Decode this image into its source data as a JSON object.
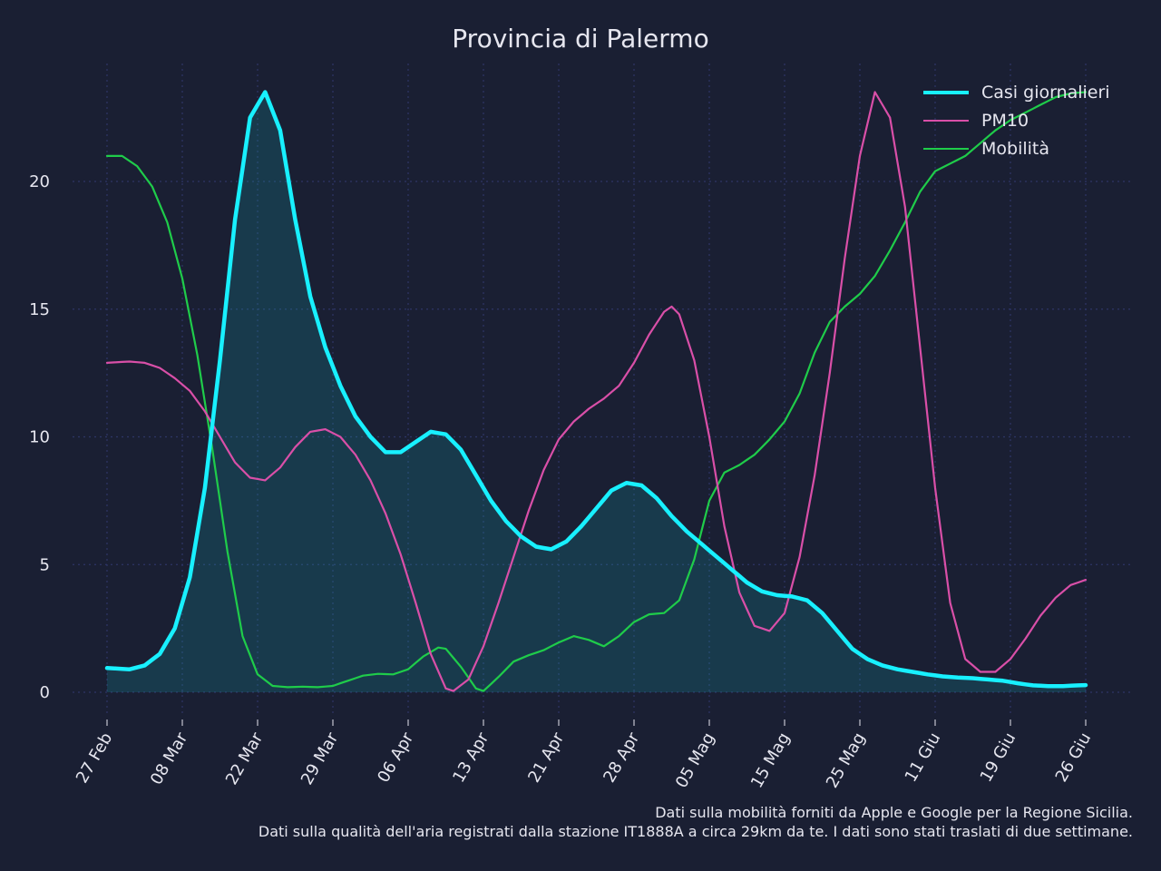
{
  "chart_data": {
    "type": "line",
    "title": "Provincia di Palermo",
    "xlabel": "",
    "ylabel": "",
    "ylim": [
      -1,
      25
    ],
    "yticks": [
      0,
      5,
      10,
      15,
      20
    ],
    "grid": true,
    "legend_position": "top-right",
    "xticks": [
      "27 Feb",
      "08 Mar",
      "22 Mar",
      "29 Mar",
      "06 Apr",
      "13 Apr",
      "21 Apr",
      "28 Apr",
      "05 Mag",
      "15 Mag",
      "25 Mag",
      "11 Giu",
      "19 Giu",
      "26 Giu"
    ],
    "x_tick_indices": [
      0,
      10,
      20,
      30,
      40,
      50,
      60,
      70,
      80,
      90,
      100,
      110,
      120,
      130
    ],
    "x_points": 131,
    "series": [
      {
        "name": "Casi giornalieri",
        "color": "#18f0ff",
        "fill": true,
        "keypoints": [
          [
            0,
            0.95
          ],
          [
            3,
            0.9
          ],
          [
            5,
            1.05
          ],
          [
            7,
            1.5
          ],
          [
            9,
            2.5
          ],
          [
            11,
            4.5
          ],
          [
            13,
            8.0
          ],
          [
            15,
            13.0
          ],
          [
            17,
            18.5
          ],
          [
            19,
            22.5
          ],
          [
            21,
            23.5
          ],
          [
            23,
            22.0
          ],
          [
            25,
            18.5
          ],
          [
            27,
            15.5
          ],
          [
            29,
            13.5
          ],
          [
            31,
            12.0
          ],
          [
            33,
            10.8
          ],
          [
            35,
            10.0
          ],
          [
            37,
            9.4
          ],
          [
            39,
            9.4
          ],
          [
            41,
            9.8
          ],
          [
            43,
            10.2
          ],
          [
            45,
            10.1
          ],
          [
            47,
            9.5
          ],
          [
            49,
            8.5
          ],
          [
            51,
            7.5
          ],
          [
            53,
            6.7
          ],
          [
            55,
            6.1
          ],
          [
            57,
            5.7
          ],
          [
            59,
            5.6
          ],
          [
            61,
            5.9
          ],
          [
            63,
            6.5
          ],
          [
            65,
            7.2
          ],
          [
            67,
            7.9
          ],
          [
            69,
            8.2
          ],
          [
            71,
            8.1
          ],
          [
            73,
            7.6
          ],
          [
            75,
            6.9
          ],
          [
            77,
            6.3
          ],
          [
            79,
            5.8
          ],
          [
            81,
            5.3
          ],
          [
            83,
            4.8
          ],
          [
            85,
            4.3
          ],
          [
            87,
            3.95
          ],
          [
            89,
            3.8
          ],
          [
            91,
            3.75
          ],
          [
            93,
            3.6
          ],
          [
            95,
            3.1
          ],
          [
            97,
            2.4
          ],
          [
            99,
            1.7
          ],
          [
            101,
            1.3
          ],
          [
            103,
            1.05
          ],
          [
            105,
            0.9
          ],
          [
            107,
            0.8
          ],
          [
            109,
            0.7
          ],
          [
            111,
            0.62
          ],
          [
            113,
            0.58
          ],
          [
            115,
            0.55
          ],
          [
            117,
            0.5
          ],
          [
            119,
            0.45
          ],
          [
            121,
            0.35
          ],
          [
            123,
            0.27
          ],
          [
            125,
            0.24
          ],
          [
            127,
            0.24
          ],
          [
            129,
            0.27
          ],
          [
            130,
            0.28
          ]
        ]
      },
      {
        "name": "PM10",
        "color": "#d94fa8",
        "fill": false,
        "keypoints": [
          [
            0,
            12.9
          ],
          [
            3,
            12.95
          ],
          [
            5,
            12.9
          ],
          [
            7,
            12.7
          ],
          [
            9,
            12.3
          ],
          [
            11,
            11.8
          ],
          [
            13,
            11.0
          ],
          [
            15,
            10.0
          ],
          [
            17,
            9.0
          ],
          [
            19,
            8.4
          ],
          [
            21,
            8.3
          ],
          [
            23,
            8.8
          ],
          [
            25,
            9.6
          ],
          [
            27,
            10.2
          ],
          [
            29,
            10.3
          ],
          [
            31,
            10.0
          ],
          [
            33,
            9.3
          ],
          [
            35,
            8.3
          ],
          [
            37,
            7.0
          ],
          [
            39,
            5.4
          ],
          [
            41,
            3.5
          ],
          [
            43,
            1.5
          ],
          [
            45,
            0.15
          ],
          [
            46,
            0.05
          ],
          [
            48,
            0.5
          ],
          [
            50,
            1.8
          ],
          [
            52,
            3.5
          ],
          [
            54,
            5.3
          ],
          [
            56,
            7.1
          ],
          [
            58,
            8.7
          ],
          [
            60,
            9.9
          ],
          [
            62,
            10.6
          ],
          [
            64,
            11.1
          ],
          [
            66,
            11.5
          ],
          [
            68,
            12.0
          ],
          [
            70,
            12.9
          ],
          [
            72,
            14.0
          ],
          [
            74,
            14.9
          ],
          [
            75,
            15.1
          ],
          [
            76,
            14.8
          ],
          [
            78,
            13.0
          ],
          [
            80,
            10.0
          ],
          [
            82,
            6.5
          ],
          [
            84,
            3.9
          ],
          [
            86,
            2.6
          ],
          [
            88,
            2.4
          ],
          [
            90,
            3.1
          ],
          [
            92,
            5.3
          ],
          [
            94,
            8.5
          ],
          [
            96,
            12.5
          ],
          [
            98,
            17.0
          ],
          [
            100,
            21.0
          ],
          [
            102,
            23.5
          ],
          [
            104,
            22.5
          ],
          [
            106,
            19.0
          ],
          [
            108,
            13.5
          ],
          [
            110,
            8.0
          ],
          [
            112,
            3.5
          ],
          [
            114,
            1.3
          ],
          [
            116,
            0.8
          ],
          [
            118,
            0.8
          ],
          [
            120,
            1.3
          ],
          [
            122,
            2.1
          ],
          [
            124,
            3.0
          ],
          [
            126,
            3.7
          ],
          [
            128,
            4.2
          ],
          [
            130,
            4.4
          ]
        ]
      },
      {
        "name": "Mobilità",
        "color": "#1fcc4a",
        "fill": false,
        "keypoints": [
          [
            0,
            21.0
          ],
          [
            2,
            21.0
          ],
          [
            4,
            20.6
          ],
          [
            6,
            19.8
          ],
          [
            8,
            18.4
          ],
          [
            10,
            16.2
          ],
          [
            12,
            13.2
          ],
          [
            14,
            9.5
          ],
          [
            16,
            5.5
          ],
          [
            18,
            2.2
          ],
          [
            20,
            0.7
          ],
          [
            22,
            0.25
          ],
          [
            24,
            0.2
          ],
          [
            26,
            0.22
          ],
          [
            28,
            0.2
          ],
          [
            30,
            0.25
          ],
          [
            32,
            0.45
          ],
          [
            34,
            0.65
          ],
          [
            36,
            0.72
          ],
          [
            38,
            0.7
          ],
          [
            40,
            0.9
          ],
          [
            42,
            1.4
          ],
          [
            44,
            1.75
          ],
          [
            45,
            1.7
          ],
          [
            47,
            1.0
          ],
          [
            49,
            0.15
          ],
          [
            50,
            0.05
          ],
          [
            52,
            0.6
          ],
          [
            54,
            1.2
          ],
          [
            56,
            1.45
          ],
          [
            58,
            1.65
          ],
          [
            60,
            1.95
          ],
          [
            62,
            2.2
          ],
          [
            64,
            2.05
          ],
          [
            66,
            1.8
          ],
          [
            68,
            2.2
          ],
          [
            70,
            2.75
          ],
          [
            72,
            3.05
          ],
          [
            74,
            3.1
          ],
          [
            76,
            3.6
          ],
          [
            78,
            5.2
          ],
          [
            80,
            7.5
          ],
          [
            82,
            8.6
          ],
          [
            84,
            8.9
          ],
          [
            86,
            9.3
          ],
          [
            88,
            9.9
          ],
          [
            90,
            10.6
          ],
          [
            92,
            11.7
          ],
          [
            94,
            13.3
          ],
          [
            96,
            14.5
          ],
          [
            98,
            15.1
          ],
          [
            100,
            15.6
          ],
          [
            102,
            16.3
          ],
          [
            104,
            17.3
          ],
          [
            106,
            18.4
          ],
          [
            108,
            19.6
          ],
          [
            110,
            20.4
          ],
          [
            112,
            20.7
          ],
          [
            114,
            21.0
          ],
          [
            116,
            21.5
          ],
          [
            118,
            22.0
          ],
          [
            120,
            22.4
          ],
          [
            122,
            22.7
          ],
          [
            124,
            23.0
          ],
          [
            126,
            23.3
          ],
          [
            128,
            23.45
          ],
          [
            130,
            23.5
          ]
        ]
      }
    ]
  },
  "footnote": {
    "line1": "Dati sulla mobilità forniti da Apple e Google per la Regione Sicilia.",
    "line2": "Dati sulla qualità dell'aria registrati dalla stazione IT1888A a circa 29km da te. I dati sono stati traslati di due settimane."
  }
}
